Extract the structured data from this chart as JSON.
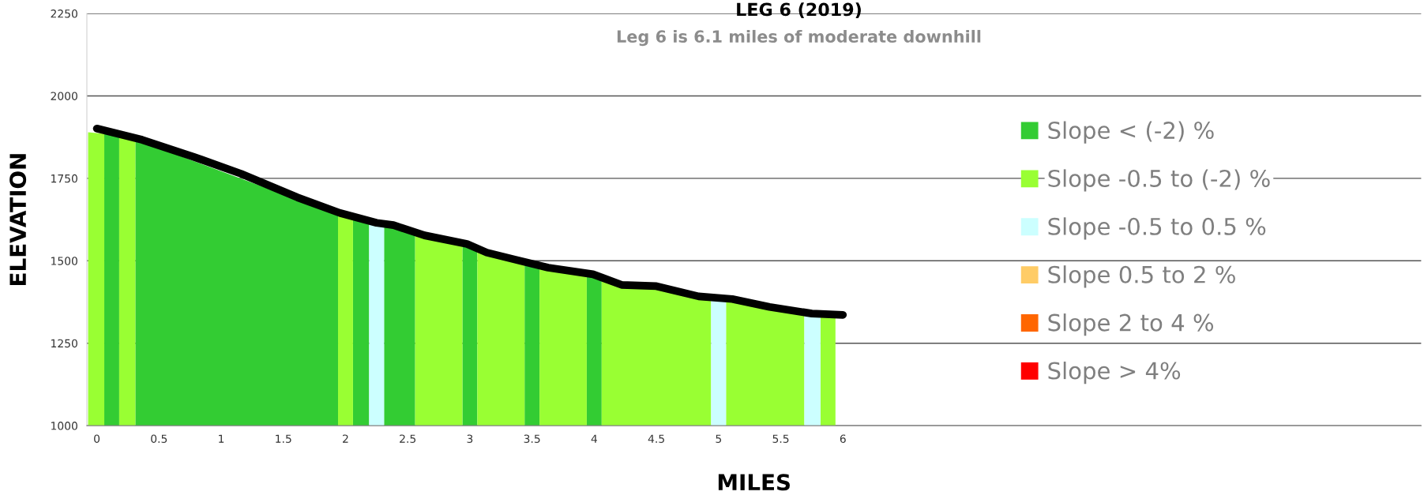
{
  "chart_data": {
    "type": "area",
    "title": "LEG 6 (2019)",
    "subtitle": "Leg 6 is 6.1 miles of moderate downhill",
    "xlabel": "MILES",
    "ylabel": "ELEVATION",
    "xlim": [
      -0.08,
      10.65
    ],
    "ylim": [
      1000,
      2250
    ],
    "xticks": [
      0,
      0.5,
      1,
      1.5,
      2,
      2.5,
      3,
      3.5,
      4,
      4.5,
      5,
      5.5,
      6
    ],
    "yticks": [
      1000,
      1250,
      1500,
      1750,
      2000,
      2250
    ],
    "grid": "y",
    "legend": "right",
    "series": [
      {
        "name": "Slope < (-2) %",
        "color": "#33cc33",
        "x": [
          0.06,
          0.18,
          null,
          0.31,
          1.94,
          null,
          2.06,
          2.19,
          null,
          2.31,
          2.56,
          null,
          2.94,
          3.06,
          null,
          3.44,
          3.56,
          null,
          3.94,
          4.06
        ],
        "values": [
          1885,
          1875,
          null,
          1868,
          1640,
          null,
          1630,
          1618,
          null,
          1608,
          1580,
          null,
          1552,
          1535,
          null,
          1500,
          1485,
          null,
          1458,
          1450
        ]
      },
      {
        "name": "Slope -0.5 to (-2) %",
        "color": "#99ff33",
        "x": [
          -0.07,
          0.06,
          null,
          0.18,
          0.31,
          null,
          1.94,
          2.06,
          null,
          2.56,
          2.94,
          null,
          3.06,
          3.44,
          null,
          3.56,
          3.94,
          null,
          4.06,
          4.94,
          null,
          5.06,
          5.69,
          null,
          5.82,
          5.94
        ],
        "values": [
          1890,
          1885,
          null,
          1875,
          1868,
          null,
          1640,
          1630,
          null,
          1580,
          1552,
          null,
          1535,
          1500,
          null,
          1485,
          1458,
          null,
          1450,
          1385,
          null,
          1380,
          1340,
          null,
          1335,
          1333
        ]
      },
      {
        "name": "Slope -0.5 to 0.5 %",
        "color": "#ccffff",
        "x": [
          2.19,
          2.31,
          null,
          4.94,
          5.06,
          null,
          5.69,
          5.82
        ],
        "values": [
          1618,
          1608,
          null,
          1385,
          1380,
          null,
          1340,
          1335
        ]
      },
      {
        "name": "Slope 0.5 to 2 %",
        "color": "#ffcc66"
      },
      {
        "name": "Slope 2 to 4 %",
        "color": "#ff6600"
      },
      {
        "name": "Slope > 4%",
        "color": "#ff0000"
      },
      {
        "type": "line",
        "color": "#000000",
        "x": [
          0,
          0.364,
          0.773,
          1.159,
          1.614,
          1.955,
          2.25,
          2.386,
          2.636,
          2.977,
          3.136,
          3.36,
          3.63,
          3.99,
          4.22,
          4.5,
          4.84,
          5.11,
          5.41,
          5.75,
          6.0
        ],
        "values": [
          1901,
          1867,
          1816,
          1764,
          1692,
          1645,
          1615,
          1608,
          1577,
          1551,
          1525,
          1504,
          1479,
          1459,
          1427,
          1423,
          1392,
          1384,
          1360,
          1340,
          1336
        ]
      }
    ]
  }
}
